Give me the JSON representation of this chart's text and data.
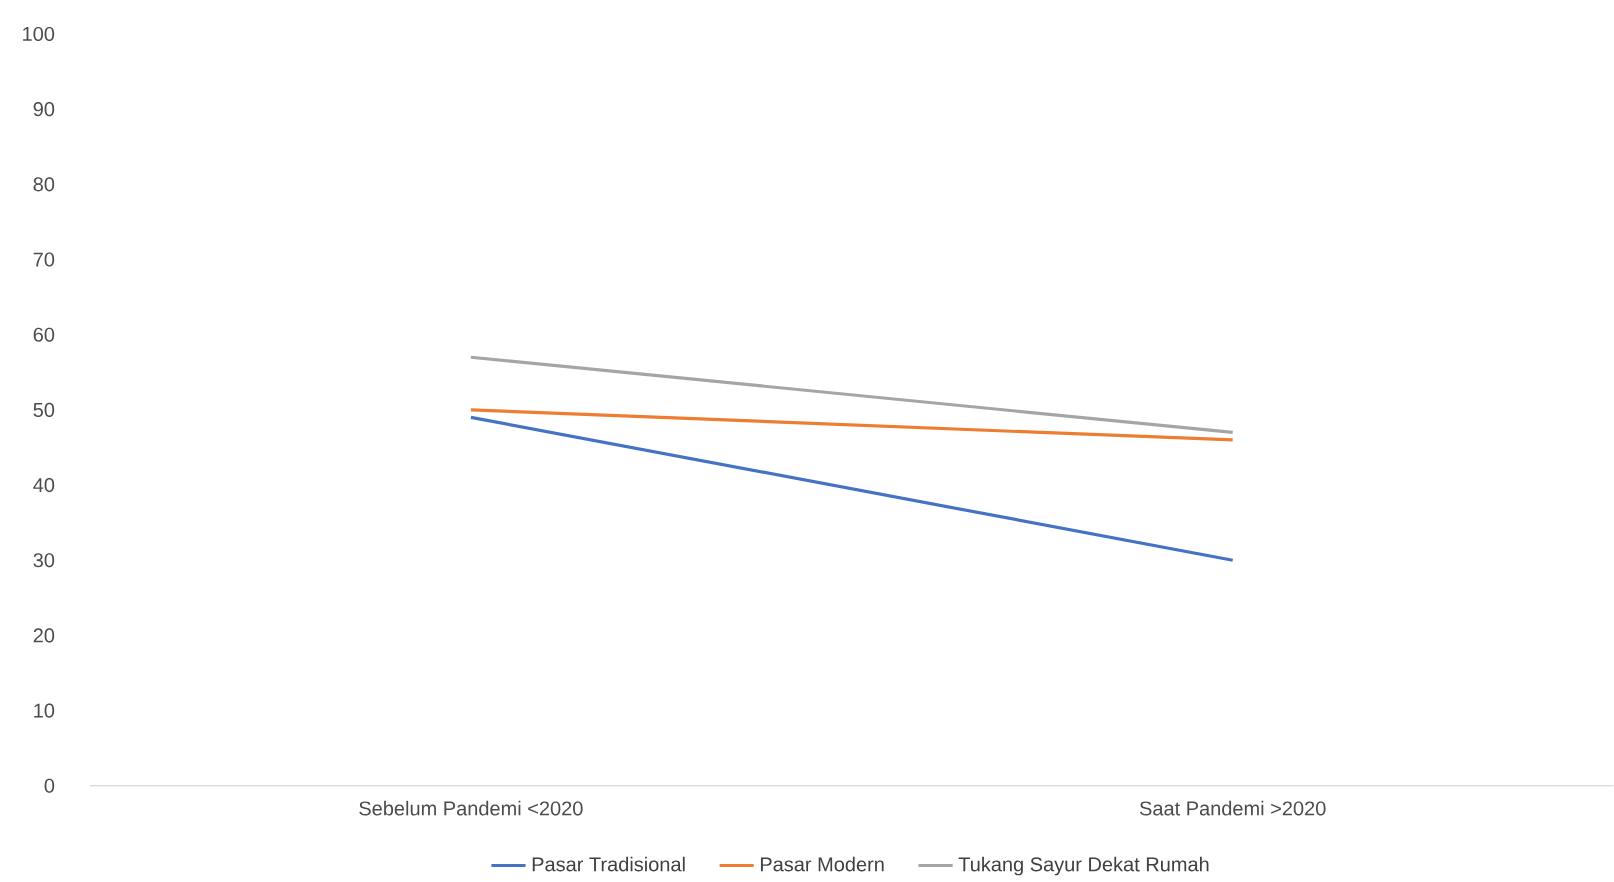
{
  "chart_data": {
    "type": "line",
    "categories": [
      "Sebelum Pandemi <2020",
      "Saat Pandemi >2020"
    ],
    "series": [
      {
        "name": "Pasar Tradisional",
        "color": "#4472c4",
        "values": [
          49,
          30
        ]
      },
      {
        "name": "Pasar Modern",
        "color": "#ed7d31",
        "values": [
          50,
          46
        ]
      },
      {
        "name": "Tukang Sayur Dekat Rumah",
        "color": "#a5a5a5",
        "values": [
          57,
          47
        ]
      }
    ],
    "ylim": [
      0,
      100
    ],
    "yticks": [
      0,
      10,
      20,
      30,
      40,
      50,
      60,
      70,
      80,
      90,
      100
    ],
    "grid": false,
    "legend": "bottom",
    "marker": "none",
    "line_style": "solid"
  }
}
